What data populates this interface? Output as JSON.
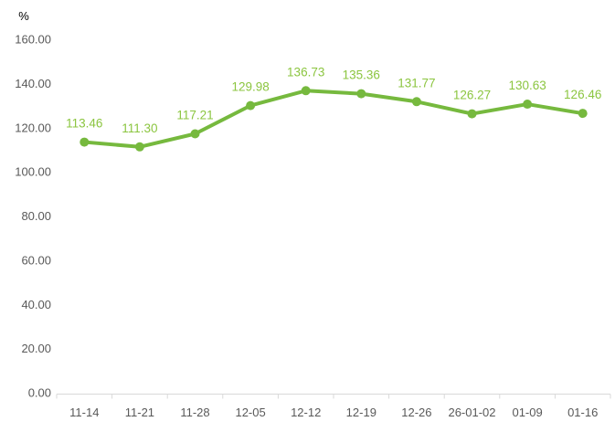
{
  "chart_data": {
    "type": "line",
    "title": "",
    "unit_label": "%",
    "categories": [
      "11-14",
      "11-21",
      "11-28",
      "12-05",
      "12-12",
      "12-19",
      "12-26",
      "26-01-02",
      "01-09",
      "01-16"
    ],
    "series": [
      {
        "name": "series-1",
        "values": [
          113.46,
          111.3,
          117.21,
          129.98,
          136.73,
          135.36,
          131.77,
          126.27,
          130.63,
          126.46
        ],
        "data_labels": [
          "113.46",
          "111.30",
          "117.21",
          "129.98",
          "136.73",
          "135.36",
          "131.77",
          "126.27",
          "130.63",
          "126.46"
        ]
      }
    ],
    "y_ticks": [
      "0.00",
      "20.00",
      "40.00",
      "60.00",
      "80.00",
      "100.00",
      "120.00",
      "140.00",
      "160.00"
    ],
    "ylim": [
      0,
      160
    ],
    "y_tick_step": 20,
    "xlabel": "",
    "ylabel": "%",
    "grid": false,
    "legend_position": "none",
    "colors": {
      "line": "#76B93E",
      "marker": "#76B93E",
      "data_label": "#8BC53F",
      "axis_text": "#595959",
      "axis_line": "#D9D9D9"
    }
  }
}
